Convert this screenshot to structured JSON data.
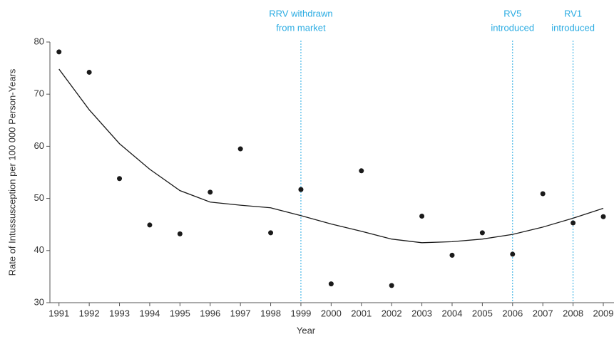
{
  "chart_data": {
    "type": "scatter",
    "xlabel": "Year",
    "ylabel": "Rate of Intussusception per 100 000 Person-Years",
    "x": [
      1991,
      1992,
      1993,
      1994,
      1995,
      1996,
      1997,
      1998,
      1999,
      2000,
      2001,
      2002,
      2003,
      2004,
      2005,
      2006,
      2007,
      2008,
      2009
    ],
    "series": [
      {
        "mode": "markers",
        "color": "#1a1a1a",
        "values": [
          78.1,
          74.2,
          53.8,
          44.9,
          43.2,
          51.2,
          59.5,
          43.4,
          51.7,
          33.6,
          55.3,
          33.3,
          46.6,
          39.1,
          43.4,
          39.3,
          50.9,
          45.3,
          46.5
        ]
      },
      {
        "mode": "line",
        "color": "#1a1a1a",
        "values": [
          74.8,
          67.0,
          60.5,
          55.6,
          51.5,
          49.3,
          48.7,
          48.2,
          46.7,
          45.1,
          43.7,
          42.2,
          41.5,
          41.7,
          42.2,
          43.1,
          44.5,
          46.2,
          48.1
        ]
      }
    ],
    "xlim": [
      1990.7,
      2009
    ],
    "xticks": [
      1991,
      1992,
      1993,
      1994,
      1995,
      1996,
      1997,
      1998,
      1999,
      2000,
      2001,
      2002,
      2003,
      2004,
      2005,
      2006,
      2007,
      2008,
      2009
    ],
    "ylim": [
      30,
      80
    ],
    "yticks": [
      30,
      40,
      50,
      60,
      70,
      80
    ],
    "grid": false,
    "annotations": [
      {
        "x": 1999,
        "text": [
          "RRV withdrawn",
          "from market"
        ],
        "color": "#29abe2"
      },
      {
        "x": 2006,
        "text": [
          "RV5",
          "introduced"
        ],
        "color": "#29abe2"
      },
      {
        "x": 2008,
        "text": [
          "RV1",
          "introduced"
        ],
        "color": "#29abe2"
      }
    ]
  }
}
